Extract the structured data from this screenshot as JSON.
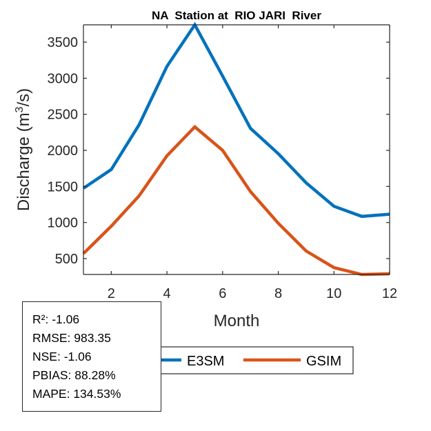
{
  "chart_data": {
    "type": "line",
    "title": "NA  Station at  RIO JARI  River",
    "xlabel": "Month",
    "ylabel": "Discharge (m³/s)",
    "ylabel_parts": {
      "base": "Discharge (m",
      "sup": "3",
      "tail": "/s)"
    },
    "x": [
      1,
      2,
      3,
      4,
      5,
      6,
      7,
      8,
      9,
      10,
      11,
      12
    ],
    "xlim": [
      1,
      12
    ],
    "ylim": [
      280,
      3740
    ],
    "xticks": [
      2,
      4,
      6,
      8,
      10,
      12
    ],
    "yticks": [
      500,
      1000,
      1500,
      2000,
      2500,
      3000,
      3500
    ],
    "grid": false,
    "legend_placement": "bottom-center-outside",
    "series": [
      {
        "name": "E3SM",
        "color": "#0072BD",
        "values": [
          1475,
          1735,
          2355,
          3165,
          3740,
          3030,
          2305,
          1955,
          1550,
          1225,
          1085,
          1115
        ]
      },
      {
        "name": "GSIM",
        "color": "#D95319",
        "values": [
          570,
          950,
          1370,
          1925,
          2325,
          2000,
          1430,
          990,
          605,
          375,
          280,
          290
        ]
      }
    ]
  },
  "stats": [
    "R²: -1.06",
    "RMSE: 983.35",
    "NSE: -1.06",
    "PBIAS: 88.28%",
    "MAPE: 134.53%"
  ]
}
